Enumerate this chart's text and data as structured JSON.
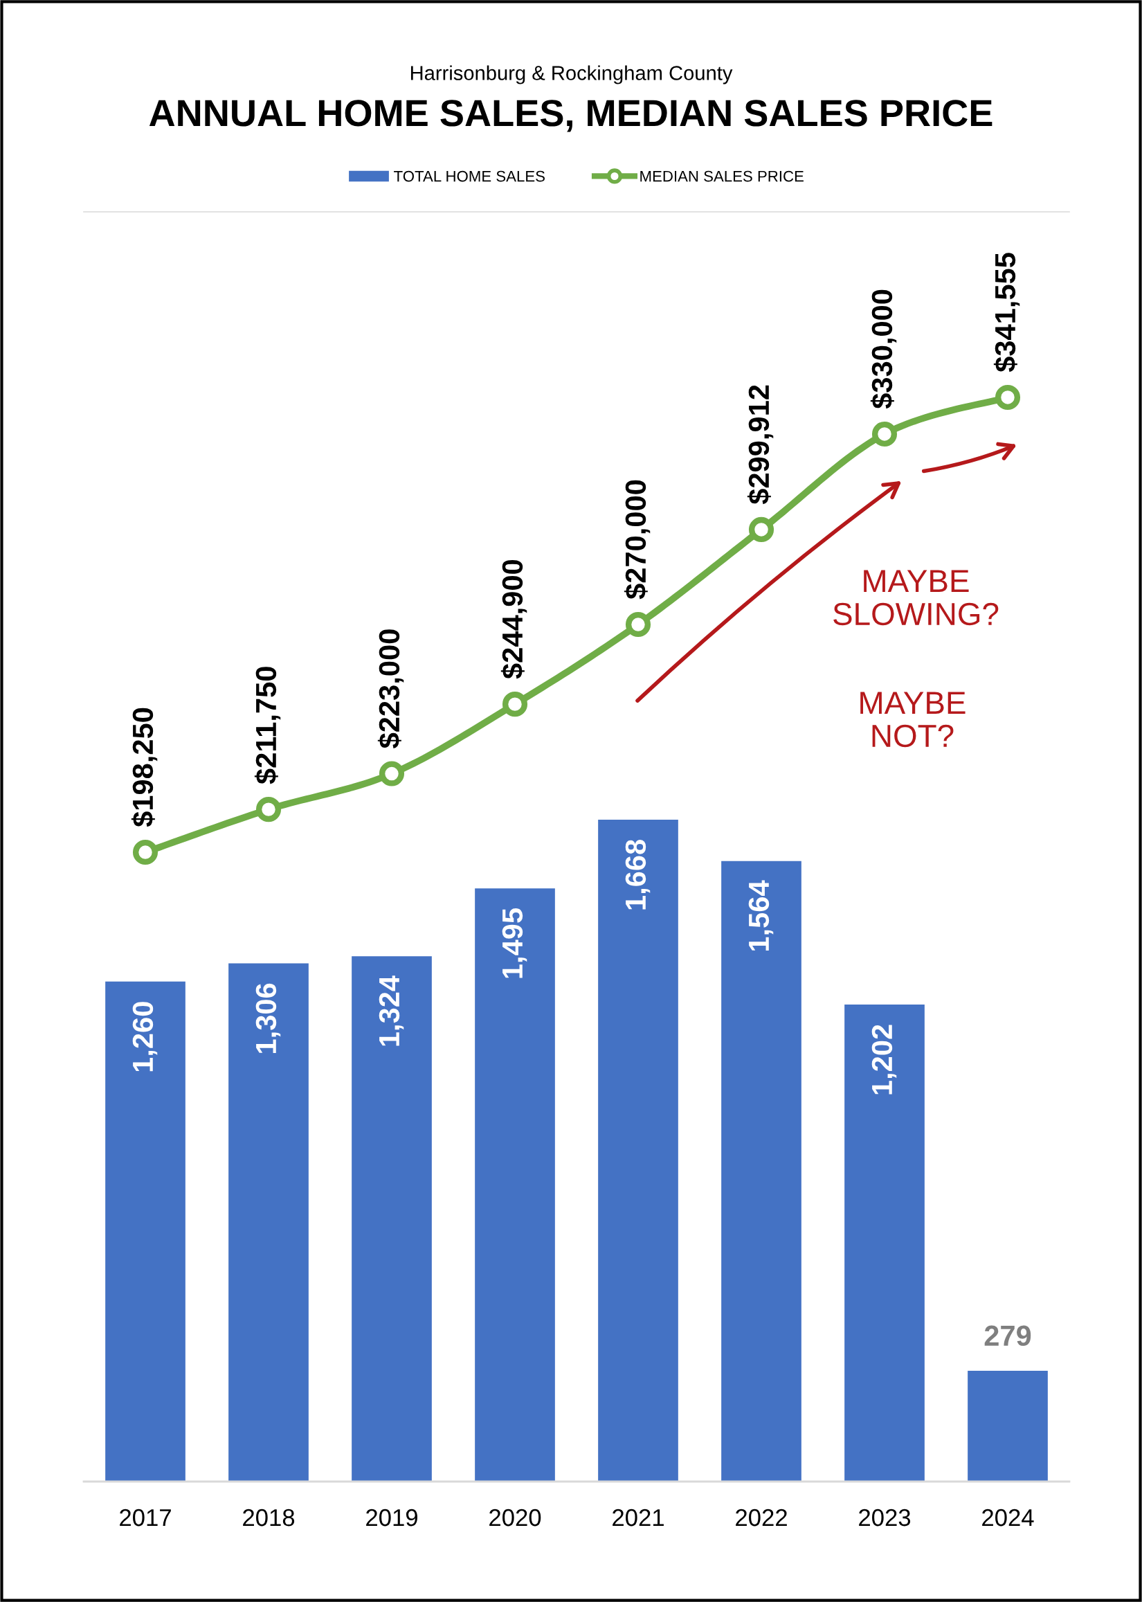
{
  "chart_data": {
    "type": "bar",
    "title": "ANNUAL HOME SALES, MEDIAN SALES PRICE",
    "subtitle": "Harrisonburg & Rockingham County",
    "categories": [
      "2017",
      "2018",
      "2019",
      "2020",
      "2021",
      "2022",
      "2023",
      "2024"
    ],
    "series": [
      {
        "name": "TOTAL HOME SALES",
        "color": "#4472c4",
        "values": [
          1260,
          1306,
          1324,
          1495,
          1668,
          1564,
          1202,
          279
        ],
        "value_labels": [
          "1,260",
          "1,306",
          "1,324",
          "1,495",
          "1,668",
          "1,564",
          "1,202",
          "279"
        ]
      },
      {
        "name": "MEDIAN SALES PRICE",
        "type": "line",
        "axis": "y2",
        "color": "#70ad47",
        "values": [
          198250,
          211750,
          223000,
          244900,
          270000,
          299912,
          330000,
          341555
        ],
        "value_labels": [
          "$198,250",
          "$211,750",
          "$223,000",
          "$244,900",
          "$270,000",
          "$299,912",
          "$330,000",
          "$341,555"
        ]
      }
    ],
    "ylim": [
      0,
      3200
    ],
    "y2lim": [
      0,
      400000
    ],
    "tick_labels": "x",
    "marker": "circle",
    "legend": "top",
    "annotations": [
      "MAYBE\nSLOWING?",
      "MAYBE\nNOT?"
    ]
  }
}
